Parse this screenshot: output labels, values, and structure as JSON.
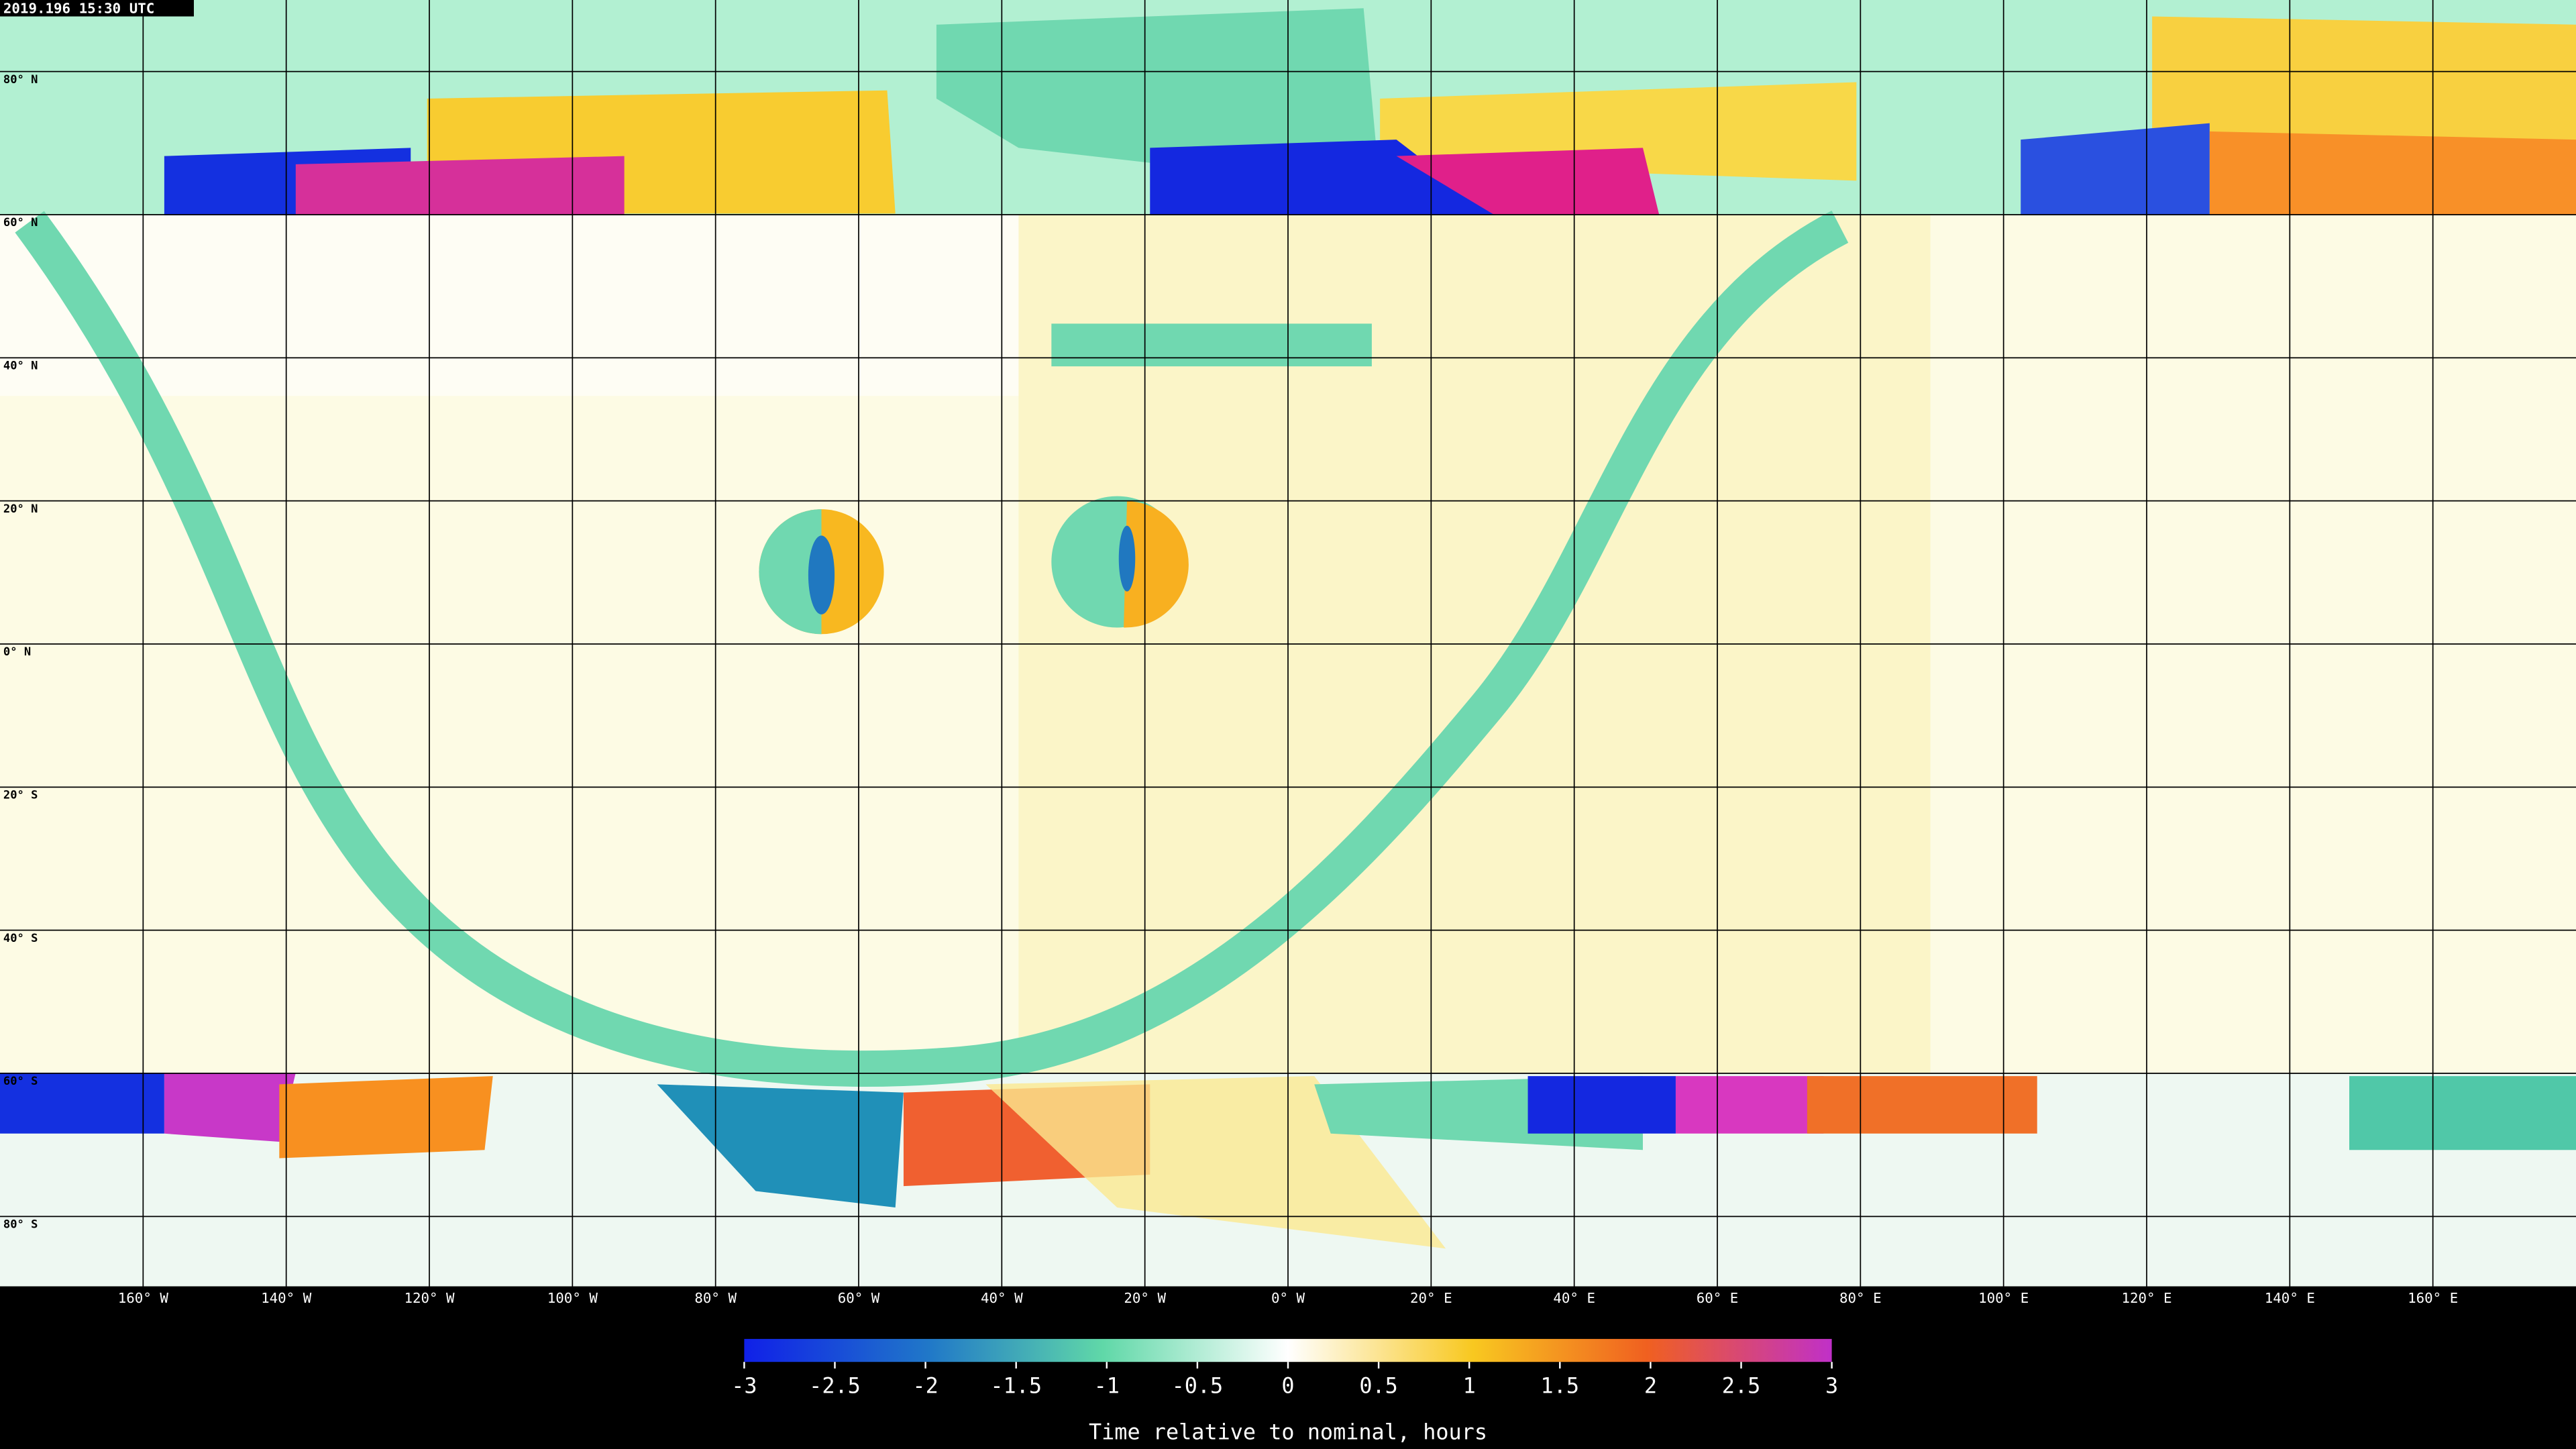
{
  "timestamp": "2019.196 15:30 UTC",
  "latitude_labels": [
    "80° N",
    "60° N",
    "40° N",
    "20° N",
    "0° N",
    "20° S",
    "40° S",
    "60° S",
    "80° S"
  ],
  "longitude_labels": [
    "160° W",
    "140° W",
    "120° W",
    "100° W",
    "80° W",
    "60° W",
    "40° W",
    "20° W",
    "0° W",
    "20° E",
    "40° E",
    "60° E",
    "80° E",
    "100° E",
    "120° E",
    "140° E",
    "160° E"
  ],
  "colorbar": {
    "lim": [
      -3,
      3
    ],
    "ticks": [
      -3,
      -2.5,
      -2,
      -1.5,
      -1,
      -0.5,
      0,
      0.5,
      1,
      1.5,
      2,
      2.5,
      3
    ],
    "label": "Time relative to nominal, hours"
  }
}
